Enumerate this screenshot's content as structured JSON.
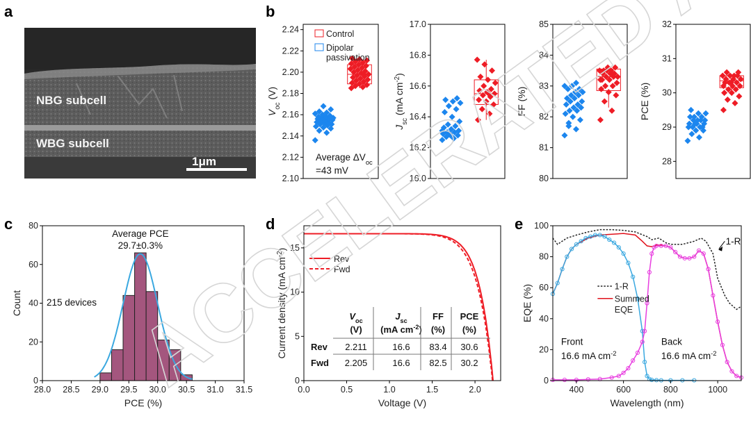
{
  "watermark": "ACCELERATED ARTICLE PREVIEW",
  "panel_letters": [
    "a",
    "b",
    "c",
    "d",
    "e"
  ],
  "sem": {
    "labels": [
      {
        "name": "sem-label-nbg",
        "text": "NBG subcell"
      },
      {
        "name": "sem-label-wbg",
        "text": "WBG subcell"
      }
    ],
    "scalebar_text": "1μm"
  },
  "colors": {
    "control": "#ee1c25",
    "dipolar": "#1c86ee",
    "hist_bar": "#a4567e",
    "fit": "#3aa8e0",
    "front_eqe": "#3aa8e0",
    "back_eqe": "#e83ee0",
    "summed": "#e0101a",
    "one_minus_r": "#222222"
  },
  "chart_data": [
    {
      "id": "b-voc",
      "type": "scatter",
      "ylabel_main": "V",
      "ylabel_sub": "oc",
      "ylabel_tail": " (V)",
      "ylim": [
        2.1,
        2.245
      ],
      "yticks": [
        "2.10",
        "2.12",
        "2.14",
        "2.16",
        "2.18",
        "2.20",
        "2.22",
        "2.24"
      ],
      "ytick_values": [
        2.1,
        2.12,
        2.14,
        2.16,
        2.18,
        2.2,
        2.22,
        2.24
      ],
      "box": {
        "q1": 2.189,
        "median": 2.198,
        "q3": 2.207,
        "wlo": 2.185,
        "whi": 2.212
      },
      "legend": [
        "Control",
        "Dipolar",
        "passivation"
      ],
      "annotation_line1": "Average ΔV",
      "annotation_sub": "oc",
      "annotation_line2": "=43 mV",
      "series": [
        {
          "group": "Dipolar passivation",
          "values": [
            2.136,
            2.143,
            2.145,
            2.147,
            2.148,
            2.149,
            2.15,
            2.151,
            2.151,
            2.152,
            2.153,
            2.153,
            2.154,
            2.155,
            2.155,
            2.156,
            2.156,
            2.157,
            2.157,
            2.158,
            2.158,
            2.159,
            2.16,
            2.161,
            2.162,
            2.163,
            2.165,
            2.168
          ]
        },
        {
          "group": "Control",
          "values": [
            2.185,
            2.186,
            2.187,
            2.188,
            2.189,
            2.19,
            2.191,
            2.192,
            2.193,
            2.194,
            2.195,
            2.196,
            2.197,
            2.198,
            2.199,
            2.2,
            2.201,
            2.202,
            2.203,
            2.204,
            2.205,
            2.206,
            2.207,
            2.208,
            2.209,
            2.21,
            2.211,
            2.212,
            2.213,
            2.198
          ]
        }
      ]
    },
    {
      "id": "b-jsc",
      "type": "scatter",
      "ylabel_main": "J",
      "ylabel_sub": "sc",
      "ylabel_tail": " (mA cm",
      "ylabel_sup": "-2",
      "ylabel_end": ")",
      "ylim": [
        16.0,
        17.0
      ],
      "yticks": [
        "16.0",
        "16.2",
        "16.4",
        "16.6",
        "16.8",
        "17.0"
      ],
      "ytick_values": [
        16.0,
        16.2,
        16.4,
        16.6,
        16.8,
        17.0
      ],
      "box": {
        "q1": 16.48,
        "median": 16.55,
        "q3": 16.64,
        "wlo": 16.38,
        "whi": 16.77
      },
      "series": [
        {
          "group": "Dipolar passivation",
          "values": [
            16.25,
            16.26,
            16.27,
            16.28,
            16.28,
            16.29,
            16.3,
            16.3,
            16.31,
            16.32,
            16.33,
            16.34,
            16.35,
            16.37,
            16.4,
            16.43,
            16.45,
            16.47,
            16.49,
            16.5,
            16.51,
            16.52,
            16.29,
            16.31
          ]
        },
        {
          "group": "Control",
          "values": [
            16.38,
            16.42,
            16.45,
            16.48,
            16.5,
            16.51,
            16.53,
            16.54,
            16.55,
            16.56,
            16.57,
            16.58,
            16.6,
            16.62,
            16.64,
            16.66,
            16.7,
            16.74,
            16.77,
            16.55
          ]
        }
      ]
    },
    {
      "id": "b-ff",
      "type": "scatter",
      "ylabel_main": "FF (%)",
      "ylim": [
        80,
        85
      ],
      "yticks": [
        "80",
        "81",
        "82",
        "83",
        "84",
        "85"
      ],
      "ytick_values": [
        80,
        81,
        82,
        83,
        84,
        85
      ],
      "box": {
        "q1": 82.85,
        "median": 83.3,
        "q3": 83.55,
        "wlo": 82.3,
        "whi": 83.6
      },
      "series": [
        {
          "group": "Dipolar passivation",
          "values": [
            81.4,
            81.6,
            81.8,
            81.9,
            82.0,
            82.1,
            82.2,
            82.2,
            82.3,
            82.3,
            82.4,
            82.4,
            82.5,
            82.5,
            82.6,
            82.6,
            82.7,
            82.7,
            82.8,
            82.8,
            82.9,
            82.9,
            83.0,
            83.0,
            83.1,
            81.7
          ]
        },
        {
          "group": "Control",
          "values": [
            81.9,
            82.2,
            82.5,
            82.7,
            82.8,
            82.9,
            83.0,
            83.0,
            83.1,
            83.2,
            83.2,
            83.3,
            83.3,
            83.3,
            83.4,
            83.4,
            83.4,
            83.5,
            83.5,
            83.5,
            83.5,
            83.6,
            83.6,
            83.2,
            83.4
          ]
        }
      ]
    },
    {
      "id": "b-pce",
      "type": "scatter",
      "ylabel_main": "PCE (%)",
      "ylim": [
        27.5,
        32
      ],
      "yticks": [
        "28",
        "29",
        "30",
        "31",
        "32"
      ],
      "ytick_values": [
        28,
        29,
        30,
        31,
        32
      ],
      "box": {
        "q1": 30.15,
        "median": 30.35,
        "q3": 30.5,
        "wlo": 30.0,
        "whi": 30.55
      },
      "series": [
        {
          "group": "Dipolar passivation",
          "values": [
            28.6,
            28.7,
            28.8,
            28.9,
            28.9,
            29.0,
            29.0,
            29.0,
            29.1,
            29.1,
            29.1,
            29.2,
            29.2,
            29.2,
            29.2,
            29.3,
            29.3,
            29.3,
            29.4,
            29.4,
            29.5,
            29.0,
            29.1
          ]
        },
        {
          "group": "Control",
          "values": [
            29.5,
            29.7,
            29.8,
            29.9,
            30.0,
            30.0,
            30.1,
            30.1,
            30.2,
            30.2,
            30.3,
            30.3,
            30.3,
            30.4,
            30.4,
            30.4,
            30.5,
            30.5,
            30.5,
            30.5,
            30.6,
            30.6,
            30.3,
            30.2
          ]
        }
      ]
    },
    {
      "id": "c-hist",
      "type": "bar",
      "xlabel": "PCE (%)",
      "ylabel": "Count",
      "xlim": [
        28.0,
        31.5
      ],
      "ylim": [
        0,
        80
      ],
      "xticks": [
        "28.0",
        "28.5",
        "29.0",
        "29.5",
        "30.0",
        "30.5",
        "31.0",
        "31.5"
      ],
      "xtick_values": [
        28.0,
        28.5,
        29.0,
        29.5,
        30.0,
        30.5,
        31.0,
        31.5
      ],
      "yticks": [
        "0",
        "20",
        "40",
        "60",
        "80"
      ],
      "ytick_values": [
        0,
        20,
        40,
        60,
        80
      ],
      "bin_width": 0.2,
      "bin_centers": [
        29.1,
        29.3,
        29.5,
        29.7,
        29.9,
        30.1,
        30.3,
        30.5
      ],
      "counts": [
        4,
        16,
        44,
        66,
        46,
        21,
        16,
        3
      ],
      "fit_mean": 29.7,
      "fit_sigma": 0.3,
      "fit_peak": 65.5,
      "annotation_title": "Average PCE",
      "annotation_value": "29.7±0.3%",
      "annotation_devices": "215 devices"
    },
    {
      "id": "d-jv",
      "type": "line",
      "xlabel": "Voltage (V)",
      "ylabel_head": "Current density (mA cm",
      "ylabel_sup": "-2",
      "ylabel_end": ")",
      "xlim": [
        0,
        2.3
      ],
      "ylim": [
        0,
        17.5
      ],
      "xticks": [
        "0.0",
        "0.5",
        "1.0",
        "1.5",
        "2.0"
      ],
      "xtick_values": [
        0.0,
        0.5,
        1.0,
        1.5,
        2.0
      ],
      "yticks": [
        "0",
        "5",
        "10",
        "15"
      ],
      "ytick_values": [
        0,
        5,
        10,
        15
      ],
      "series": [
        {
          "name": "Rev",
          "voc": 2.211,
          "jsc": 16.6,
          "n": 2.2,
          "style": "solid"
        },
        {
          "name": "Fwd",
          "voc": 2.205,
          "jsc": 16.6,
          "n": 2.4,
          "style": "dashed"
        }
      ],
      "table": {
        "headers": [
          {
            "main": "V",
            "sub": "oc",
            "unit": "(V)"
          },
          {
            "main": "J",
            "sub": "sc",
            "unit": "(mA cm",
            "unit_sup": "-2",
            "unit_end": ")"
          },
          {
            "main": "FF",
            "sub": "",
            "unit": "(%)"
          },
          {
            "main": "PCE",
            "sub": "",
            "unit": "(%)"
          }
        ],
        "rows": [
          {
            "label": "Rev",
            "values": [
              "2.211",
              "16.6",
              "83.4",
              "30.6"
            ]
          },
          {
            "label": "Fwd",
            "values": [
              "2.205",
              "16.6",
              "82.5",
              "30.2"
            ]
          }
        ]
      }
    },
    {
      "id": "e-eqe",
      "type": "line",
      "xlabel": "Wavelength (nm)",
      "ylabel": "EQE (%)",
      "xlim": [
        300,
        1100
      ],
      "ylim": [
        0,
        100
      ],
      "xticks": [
        "400",
        "600",
        "800",
        "1000"
      ],
      "xtick_values": [
        400,
        600,
        800,
        1000
      ],
      "yticks": [
        "0",
        "20",
        "40",
        "60",
        "80",
        "100"
      ],
      "ytick_values": [
        0,
        20,
        40,
        60,
        80,
        100
      ],
      "series": [
        {
          "name": "1-R",
          "style": "dotted",
          "x": [
            300,
            320,
            340,
            360,
            380,
            400,
            450,
            500,
            550,
            600,
            650,
            700,
            720,
            750,
            780,
            800,
            850,
            900,
            930,
            950,
            980,
            1000,
            1030,
            1050,
            1080,
            1100
          ],
          "y": [
            92,
            88,
            90,
            92,
            93,
            94,
            96,
            97.5,
            97.5,
            97,
            96,
            93,
            91,
            92,
            89,
            88,
            88,
            90,
            92,
            90,
            82,
            66,
            55,
            50,
            46,
            48
          ]
        },
        {
          "name": "Summed EQE",
          "style": "solid",
          "x": [
            300,
            320,
            340,
            360,
            380,
            400,
            450,
            500,
            550,
            600,
            650,
            680,
            700,
            720,
            740,
            760,
            780,
            800,
            820,
            840,
            860,
            880,
            900,
            920,
            940,
            960,
            980,
            1000,
            1020,
            1040,
            1060,
            1080,
            1100
          ],
          "y": [
            56,
            63,
            72,
            80,
            85,
            88,
            92,
            94,
            94.5,
            95,
            94,
            90,
            87,
            86.5,
            87.5,
            87.5,
            87,
            86,
            83,
            80,
            79,
            79,
            80,
            84,
            82,
            72,
            55,
            38,
            23,
            12,
            6,
            3,
            2
          ]
        },
        {
          "name": "Front",
          "style": "circles",
          "x": [
            300,
            320,
            340,
            360,
            380,
            400,
            420,
            440,
            460,
            480,
            500,
            520,
            540,
            560,
            580,
            600,
            620,
            640,
            660,
            680,
            690,
            700,
            710,
            720,
            740,
            760,
            800,
            850,
            900
          ],
          "y": [
            56,
            63,
            72,
            80,
            85,
            88,
            90,
            92,
            93,
            94,
            94,
            93,
            91,
            89,
            86,
            82,
            76,
            67,
            53,
            32,
            12,
            3,
            1,
            0.5,
            0.3,
            0.2,
            0.2,
            0.2,
            0.2
          ]
        },
        {
          "name": "Back",
          "style": "circles",
          "x": [
            300,
            350,
            400,
            450,
            500,
            550,
            580,
            600,
            620,
            640,
            660,
            680,
            690,
            700,
            710,
            720,
            730,
            740,
            760,
            780,
            800,
            820,
            840,
            860,
            880,
            900,
            920,
            940,
            960,
            980,
            1000,
            1020,
            1040,
            1060,
            1080,
            1100
          ],
          "y": [
            0.5,
            0.5,
            0.5,
            0.8,
            1,
            2,
            3,
            5,
            8,
            13,
            18,
            25,
            32,
            50,
            70,
            82,
            86,
            87,
            87,
            87,
            86,
            83,
            80,
            79,
            79,
            80,
            84,
            82,
            72,
            55,
            38,
            23,
            12,
            6,
            3,
            2
          ]
        }
      ],
      "labels": {
        "one_minus_r_tag": "1-R",
        "legend_1r": "1-R",
        "legend_summed_1": "Summed",
        "legend_summed_2": "EQE",
        "front_title": "Front",
        "front_value": "16.6 mA cm",
        "back_title": "Back",
        "back_value": "16.6 mA cm",
        "sup": "-2"
      }
    }
  ]
}
